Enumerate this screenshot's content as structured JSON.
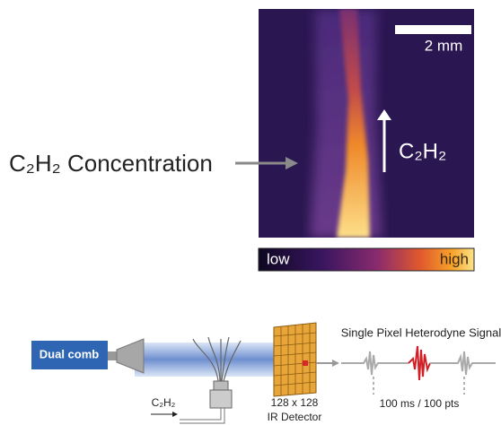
{
  "panel_top": {
    "label": "C₂H₂ Concentration",
    "scale_bar": "2 mm",
    "flow_label": "C₂H₂",
    "colorbar": {
      "low": "low",
      "high": "high"
    }
  },
  "panel_bottom": {
    "source": "Dual comb",
    "gas": "C₂H₂",
    "detector": {
      "size": "128 x 128",
      "name": "IR Detector"
    },
    "signal_title": "Single Pixel Heterodyne Signal",
    "sampling": "100 ms / 100 pts"
  }
}
